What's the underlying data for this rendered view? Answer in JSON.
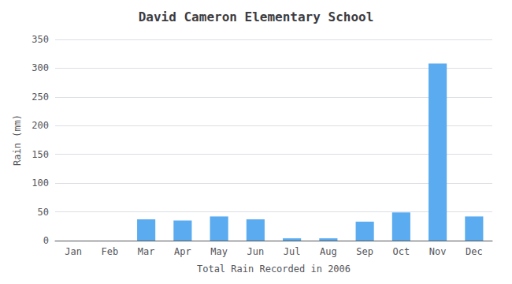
{
  "chart_data": {
    "type": "bar",
    "title": "David Cameron Elementary School",
    "xlabel": "Total Rain Recorded in 2006",
    "ylabel": "Rain (mm)",
    "categories": [
      "Jan",
      "Feb",
      "Mar",
      "Apr",
      "May",
      "Jun",
      "Jul",
      "Aug",
      "Sep",
      "Oct",
      "Nov",
      "Dec"
    ],
    "values": [
      0,
      0,
      37,
      35,
      42,
      37,
      4,
      4,
      33,
      49,
      308,
      42
    ],
    "color": "#5aabef",
    "ylim": [
      0,
      350
    ],
    "yticks": [
      0,
      50,
      100,
      150,
      200,
      250,
      300,
      350
    ],
    "grid": true
  }
}
